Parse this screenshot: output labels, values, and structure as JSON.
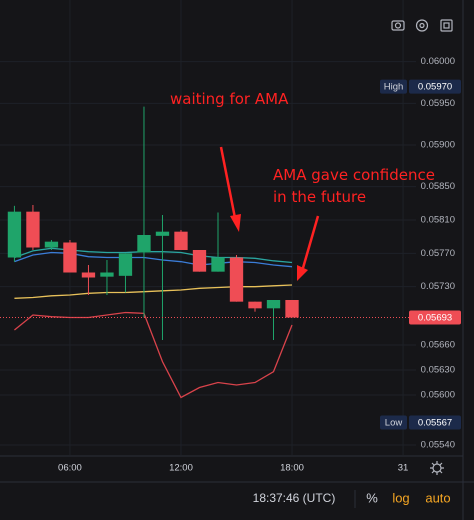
{
  "chart_data": {
    "type": "candlestick",
    "x": [
      3,
      4,
      5,
      6,
      7,
      8,
      9,
      10,
      11,
      12,
      13,
      14,
      15,
      16,
      17,
      18
    ],
    "open": [
      0.05765,
      0.0582,
      0.05777,
      0.05783,
      0.05747,
      0.05742,
      0.05743,
      0.05771,
      0.05791,
      0.05796,
      0.05774,
      0.05748,
      0.05765,
      0.05712,
      0.05704,
      0.05714
    ],
    "high": [
      0.05827,
      0.05828,
      0.05786,
      0.05786,
      0.05756,
      0.05762,
      0.0577,
      0.05946,
      0.05816,
      0.05798,
      0.05774,
      0.05819,
      0.05768,
      0.05712,
      0.05714,
      0.05714
    ],
    "low": [
      0.0576,
      0.05774,
      0.05774,
      0.05747,
      0.0572,
      0.0572,
      0.05723,
      0.05693,
      0.05666,
      0.05774,
      0.05748,
      0.05748,
      0.05712,
      0.057,
      0.05666,
      0.05693
    ],
    "close": [
      0.0582,
      0.05777,
      0.05784,
      0.05747,
      0.05741,
      0.05747,
      0.0577,
      0.05792,
      0.05796,
      0.05774,
      0.05748,
      0.05765,
      0.05712,
      0.05704,
      0.05714,
      0.05693
    ],
    "up_color": "#1fa46a",
    "down_color": "#ef4d55",
    "series": [
      {
        "color": "#3b7dd8",
        "values": [
          0.0576,
          0.05768,
          0.05771,
          0.0577,
          0.05766,
          0.05765,
          0.05765,
          0.05765,
          0.05762,
          0.0576,
          0.05756,
          0.05758,
          0.0576,
          0.05759,
          0.05756,
          0.05754
        ]
      },
      {
        "color": "#2aa5a0",
        "values": [
          0.05765,
          0.05773,
          0.05776,
          0.05774,
          0.05772,
          0.05771,
          0.05771,
          0.05772,
          0.05772,
          0.05771,
          0.05767,
          0.05765,
          0.05765,
          0.05764,
          0.05761,
          0.05759
        ]
      },
      {
        "color": "#e8c15a",
        "values": [
          0.05716,
          0.05717,
          0.05719,
          0.0572,
          0.05722,
          0.05723,
          0.05723,
          0.05724,
          0.05725,
          0.05726,
          0.05728,
          0.05729,
          0.0573,
          0.0573,
          0.05731,
          0.05732
        ]
      },
      {
        "color": "#d9434b",
        "values": [
          0.05678,
          0.05696,
          0.05694,
          0.05693,
          0.05693,
          0.05696,
          0.05699,
          0.05698,
          0.0564,
          0.05597,
          0.05609,
          0.05615,
          0.05612,
          0.05615,
          0.05628,
          0.05684
        ]
      }
    ],
    "xlim": [
      2.22,
      24.7
    ],
    "xticks": [
      {
        "value": 6,
        "label": "06:00"
      },
      {
        "value": 12,
        "label": "12:00"
      },
      {
        "value": 18,
        "label": "18:00"
      },
      {
        "value": 24,
        "label": "31"
      }
    ],
    "ylim": [
      0.05528,
      0.06074
    ],
    "yticks": [
      {
        "value": 0.06,
        "label": "0.06000"
      },
      {
        "value": 0.0595,
        "label": "0.05950"
      },
      {
        "value": 0.059,
        "label": "0.05900"
      },
      {
        "value": 0.0585,
        "label": "0.05850"
      },
      {
        "value": 0.0581,
        "label": "0.05810"
      },
      {
        "value": 0.0577,
        "label": "0.05770"
      },
      {
        "value": 0.0573,
        "label": "0.05730"
      },
      {
        "value": 0.0566,
        "label": "0.05660"
      },
      {
        "value": 0.0563,
        "label": "0.05630"
      },
      {
        "value": 0.056,
        "label": "0.05600"
      },
      {
        "value": 0.0554,
        "label": "0.05540"
      }
    ],
    "price_markers": [
      {
        "name": "High",
        "value": 0.0597,
        "value_label": "0.05970"
      },
      {
        "value": 0.05693
      },
      {
        "name": "Low",
        "value": 0.05567
      }
    ],
    "annotations": [
      "waiting for AMA",
      "AMA gave confidence",
      "in the future"
    ],
    "clock": "18:37:46 (UTC)",
    "toolbar": [
      "%",
      "log",
      "auto"
    ]
  }
}
